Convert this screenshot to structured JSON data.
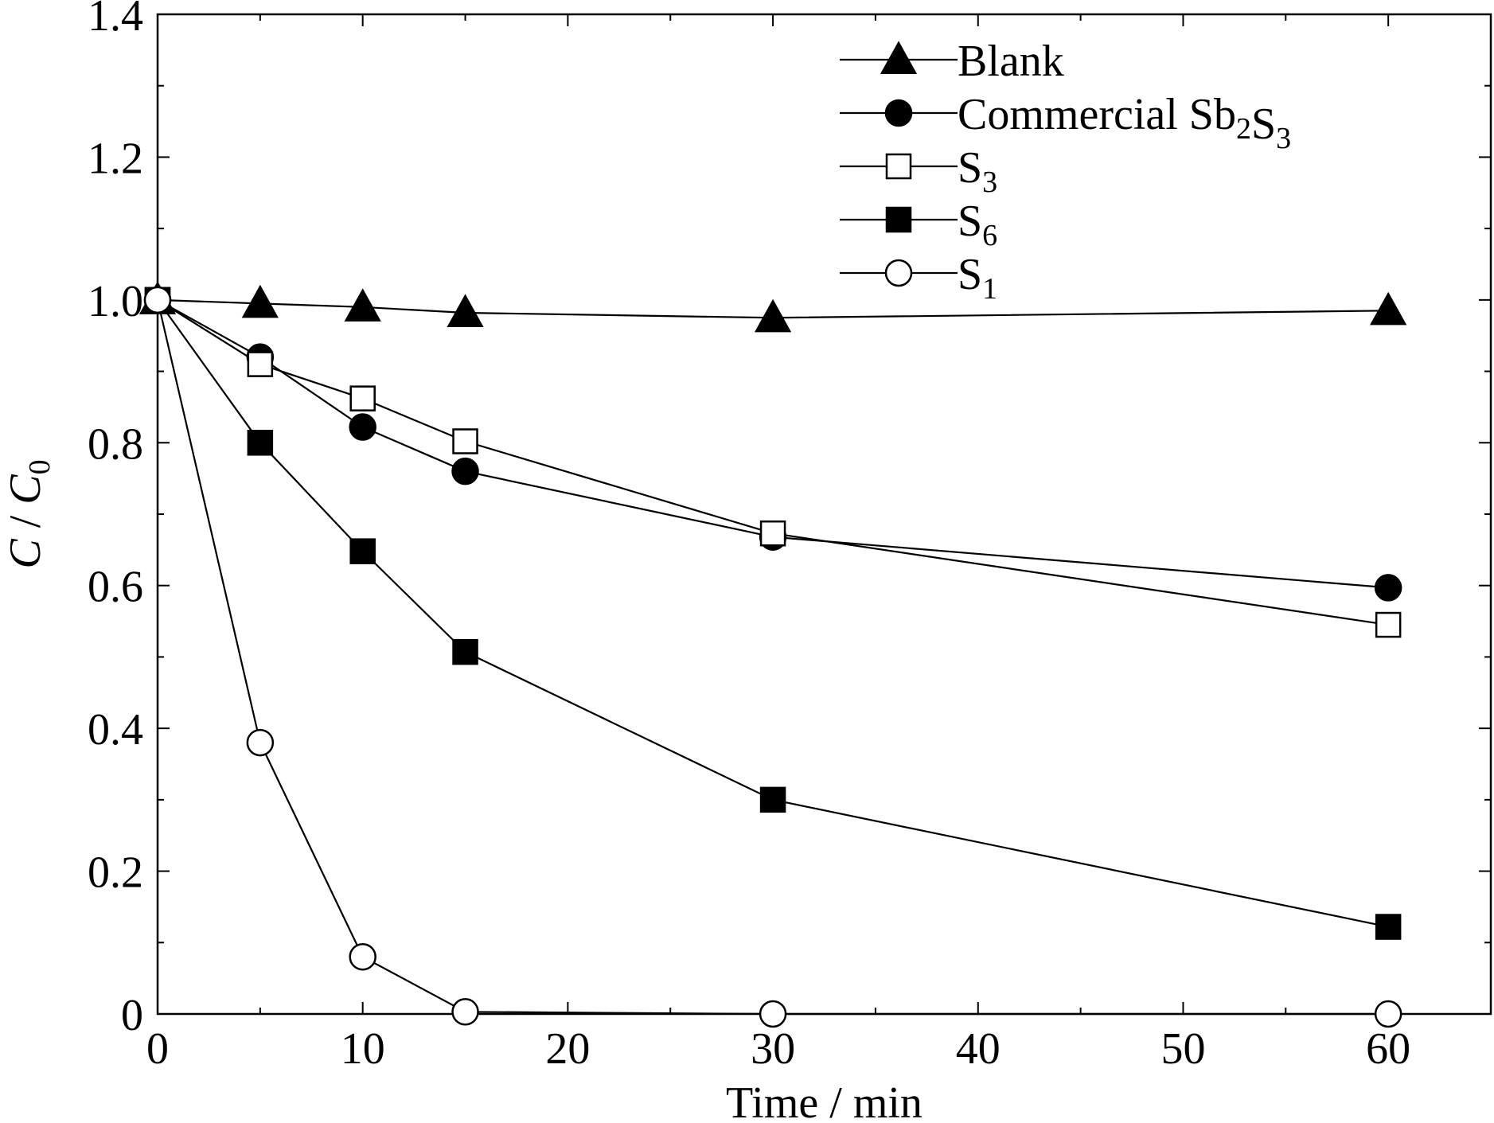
{
  "chart_data": {
    "type": "line",
    "xlabel": "Time / min",
    "ylabel": {
      "main": "C",
      "sep": " / ",
      "sub_main": "C",
      "sub": "0"
    },
    "xlim": [
      0,
      65
    ],
    "ylim": [
      0,
      1.4
    ],
    "xticks": [
      0,
      10,
      20,
      30,
      40,
      50,
      60
    ],
    "xtick_labels": [
      "0",
      "10",
      "20",
      "30",
      "40",
      "50",
      "60"
    ],
    "yticks": [
      0,
      0.2,
      0.4,
      0.6,
      0.8,
      1.0,
      1.2,
      1.4
    ],
    "ytick_labels": [
      "0",
      "0.2",
      "0.4",
      "0.6",
      "0.8",
      "1.0",
      "1.2",
      "1.4"
    ],
    "x_minor_step": 5,
    "y_minor_step": 0.1,
    "grid": false,
    "legend_position": "top-right",
    "series": [
      {
        "name": "Blank",
        "label_main": "Blank",
        "label_parts": [
          [
            "Blank",
            ""
          ]
        ],
        "marker": "triangle-filled",
        "x": [
          0,
          5,
          10,
          15,
          30,
          60
        ],
        "y": [
          1.0,
          0.995,
          0.99,
          0.982,
          0.975,
          0.985
        ]
      },
      {
        "name": "Commercial Sb2S3",
        "label_parts": [
          [
            "Commercial Sb",
            "2"
          ],
          [
            "S",
            "3"
          ]
        ],
        "marker": "circle-filled",
        "x": [
          0,
          5,
          10,
          15,
          30,
          60
        ],
        "y": [
          1.0,
          0.92,
          0.822,
          0.76,
          0.668,
          0.597
        ]
      },
      {
        "name": "S3",
        "label_parts": [
          [
            "S",
            "3"
          ]
        ],
        "marker": "square-open",
        "x": [
          0,
          5,
          10,
          15,
          30,
          60
        ],
        "y": [
          1.0,
          0.91,
          0.862,
          0.802,
          0.673,
          0.545
        ]
      },
      {
        "name": "S6",
        "label_parts": [
          [
            "S",
            "6"
          ]
        ],
        "marker": "square-filled",
        "x": [
          0,
          5,
          10,
          15,
          30,
          60
        ],
        "y": [
          1.0,
          0.8,
          0.648,
          0.507,
          0.3,
          0.122
        ]
      },
      {
        "name": "S1",
        "label_parts": [
          [
            "S",
            "1"
          ]
        ],
        "marker": "circle-open",
        "x": [
          0,
          5,
          10,
          15,
          30,
          60
        ],
        "y": [
          1.0,
          0.38,
          0.08,
          0.003,
          0.0,
          0.0
        ]
      }
    ]
  }
}
